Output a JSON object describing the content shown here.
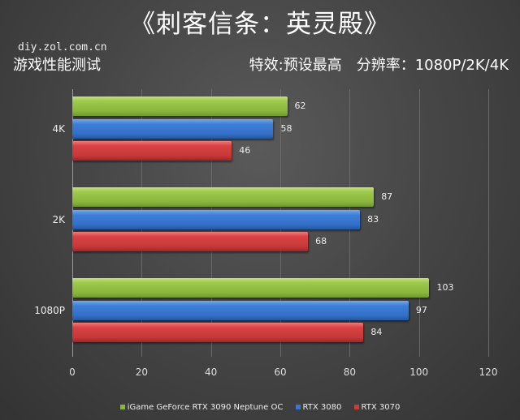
{
  "header": {
    "title": "《刺客信条：英灵殿》",
    "site": "diy.zol.com.cn",
    "subtitle_left": "游戏性能测试",
    "subtitle_right": "特效:预设最高　分辨率：1080P/2K/4K"
  },
  "colors": {
    "green": "#8ab63c",
    "blue": "#3a76d0",
    "red": "#cc3a3a"
  },
  "chart_data": {
    "type": "bar",
    "orientation": "horizontal",
    "title": "《刺客信条：英灵殿》",
    "subtitle": "游戏性能测试 — 特效:预设最高 分辨率：1080P/2K/4K",
    "categories": [
      "4K",
      "2K",
      "1080P"
    ],
    "series": [
      {
        "name": "iGame GeForce RTX 3090 Neptune OC",
        "color": "#8ab63c",
        "values": [
          62,
          87,
          103
        ]
      },
      {
        "name": "RTX 3080",
        "color": "#3a76d0",
        "values": [
          58,
          83,
          97
        ]
      },
      {
        "name": "RTX 3070",
        "color": "#cc3a3a",
        "values": [
          46,
          68,
          84
        ]
      }
    ],
    "xlabel": "",
    "ylabel": "",
    "xlim": [
      0,
      120
    ],
    "xticks": [
      0,
      20,
      40,
      60,
      80,
      100,
      120
    ],
    "grid": true,
    "legend_position": "bottom"
  },
  "axis": {
    "ticks": [
      "0",
      "20",
      "40",
      "60",
      "80",
      "100",
      "120"
    ]
  },
  "legend": [
    {
      "label": "iGame GeForce RTX 3090 Neptune OC"
    },
    {
      "label": "RTX 3080"
    },
    {
      "label": "RTX 3070"
    }
  ]
}
